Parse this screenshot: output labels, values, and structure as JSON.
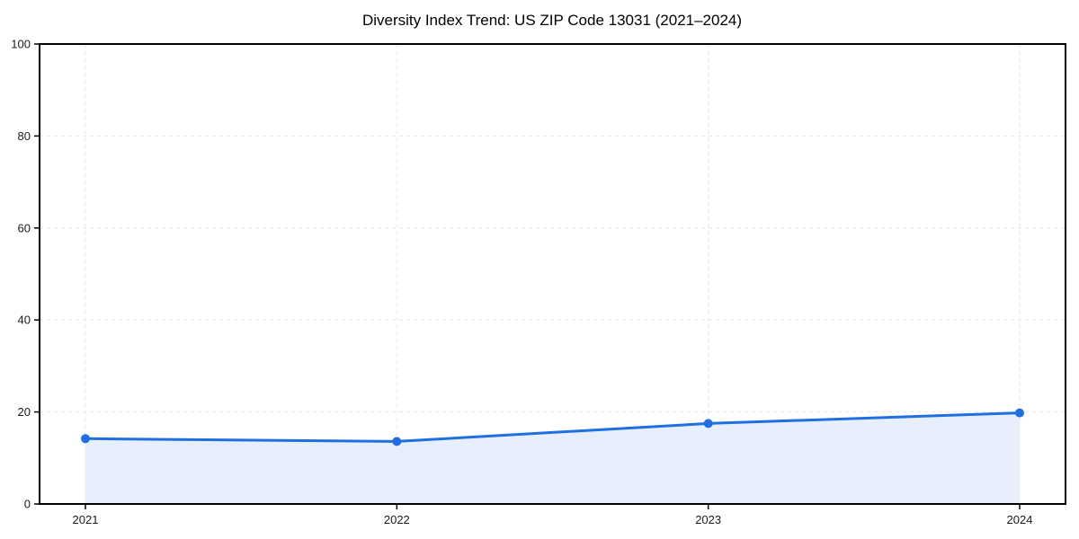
{
  "chart_data": {
    "type": "line",
    "title": "Diversity Index Trend: US ZIP Code 13031 (2021–2024)",
    "x": [
      "2021",
      "2022",
      "2023",
      "2024"
    ],
    "series": [
      {
        "name": "Diversity Index",
        "values": [
          14.2,
          13.6,
          17.5,
          19.8
        ]
      }
    ],
    "xlabel": "",
    "ylabel": "",
    "ylim": [
      0,
      100
    ],
    "yticks": [
      0,
      20,
      40,
      60,
      80,
      100
    ],
    "grid": "dashed-both-axes",
    "legend": "none",
    "area_fill": true,
    "marker": "circle",
    "colors": {
      "line": "#1f6fe0",
      "marker": "#1f6fe0",
      "fill": "#e8effc",
      "grid": "#e6e6e6",
      "spine": "#000000",
      "tick_text": "#1a1a1a",
      "background": "#ffffff"
    }
  }
}
